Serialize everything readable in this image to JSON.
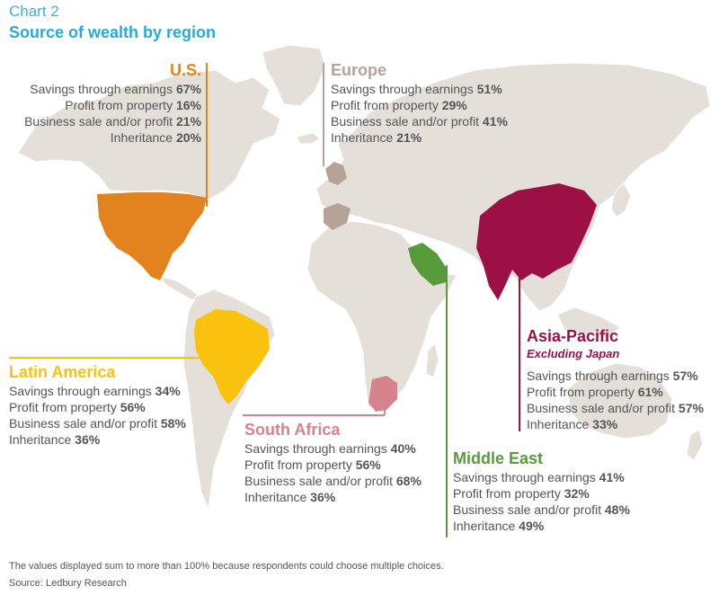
{
  "header": {
    "chart_number": "Chart 2",
    "title": "Source of wealth by region"
  },
  "colors": {
    "land": "#e4dfd9",
    "us": "#e3831f",
    "europe": "#b5a397",
    "latin_america": "#f8c20f",
    "south_africa": "#d6838e",
    "middle_east": "#589b3a",
    "asia_pacific": "#9c1046"
  },
  "regions": {
    "us": {
      "name": "U.S.",
      "rows": [
        {
          "label": "Savings through earnings",
          "value": "67%"
        },
        {
          "label": "Profit from property",
          "value": "16%"
        },
        {
          "label": "Business sale and/or profit",
          "value": "21%"
        },
        {
          "label": "Inheritance",
          "value": "20%"
        }
      ]
    },
    "europe": {
      "name": "Europe",
      "rows": [
        {
          "label": "Savings through earnings",
          "value": "51%"
        },
        {
          "label": "Profit from property",
          "value": "29%"
        },
        {
          "label": "Business sale and/or profit",
          "value": "41%"
        },
        {
          "label": "Inheritance",
          "value": "21%"
        }
      ]
    },
    "latin_america": {
      "name": "Latin America",
      "rows": [
        {
          "label": "Savings through earnings",
          "value": "34%"
        },
        {
          "label": "Profit from property",
          "value": "56%"
        },
        {
          "label": "Business sale and/or profit",
          "value": "58%"
        },
        {
          "label": "Inheritance",
          "value": "36%"
        }
      ]
    },
    "south_africa": {
      "name": "South Africa",
      "rows": [
        {
          "label": "Savings through earnings",
          "value": "40%"
        },
        {
          "label": "Profit from property",
          "value": "56%"
        },
        {
          "label": "Business sale and/or profit",
          "value": "68%"
        },
        {
          "label": "Inheritance",
          "value": "36%"
        }
      ]
    },
    "middle_east": {
      "name": "Middle East",
      "rows": [
        {
          "label": "Savings through earnings",
          "value": "41%"
        },
        {
          "label": "Profit from property",
          "value": "32%"
        },
        {
          "label": "Business sale and/or profit",
          "value": "48%"
        },
        {
          "label": "Inheritance",
          "value": "49%"
        }
      ]
    },
    "asia_pacific": {
      "name": "Asia-Pacific",
      "subtitle": "Excluding Japan",
      "rows": [
        {
          "label": "Savings through earnings",
          "value": "57%"
        },
        {
          "label": "Profit from property",
          "value": "61%"
        },
        {
          "label": "Business sale and/or profit",
          "value": "57%"
        },
        {
          "label": "Inheritance",
          "value": "33%"
        }
      ]
    }
  },
  "footer": {
    "note": "The values displayed sum to more than 100% because respondents could choose multiple choices.",
    "source": "Source: Ledbury Research"
  }
}
